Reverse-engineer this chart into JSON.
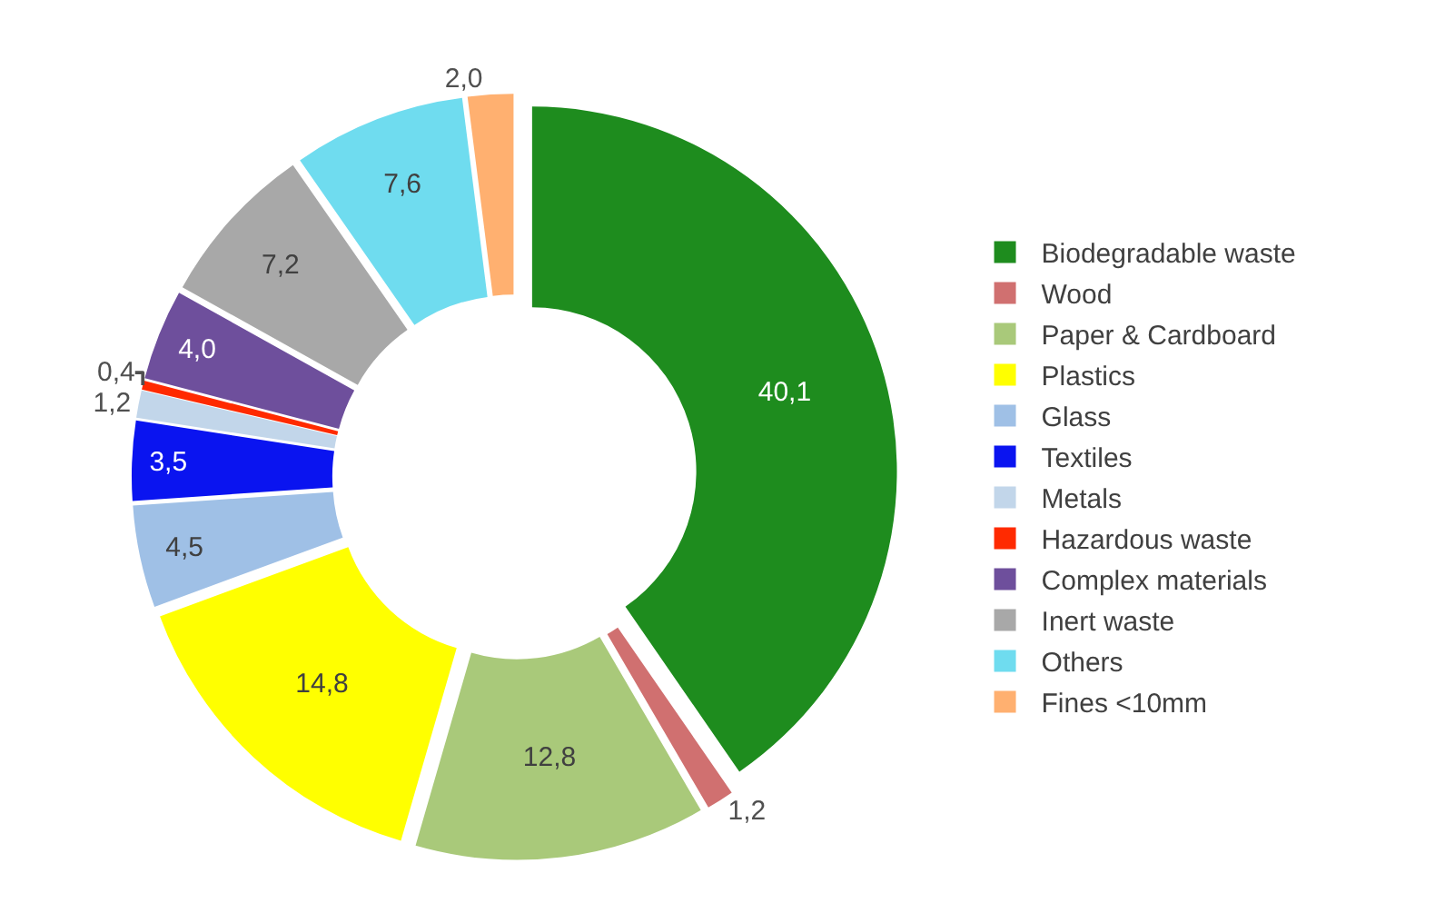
{
  "chart_data": {
    "type": "donut",
    "categories": [
      "Biodegradable waste",
      "Wood",
      "Paper & Cardboard",
      "Plastics",
      "Glass",
      "Textiles",
      "Metals",
      "Hazardous waste",
      "Complex materials",
      "Inert waste",
      "Others",
      "Fines <10mm"
    ],
    "values": [
      40.1,
      1.2,
      12.8,
      14.8,
      4.5,
      3.5,
      1.2,
      0.4,
      4.0,
      7.2,
      7.6,
      2.0
    ],
    "value_labels": [
      "40,1",
      "1,2",
      "12,8",
      "14,8",
      "4,5",
      "3,5",
      "1,2",
      "0,4",
      "4,0",
      "7,2",
      "7,6",
      "2,0"
    ],
    "colors": [
      "#1e8c1e",
      "#d07070",
      "#a9c97a",
      "#ffff00",
      "#9fc0e6",
      "#0a14f0",
      "#c2d6ea",
      "#ff2a00",
      "#6e4f9c",
      "#a8a8a8",
      "#6fdcef",
      "#ffb070"
    ],
    "legend": "right"
  }
}
